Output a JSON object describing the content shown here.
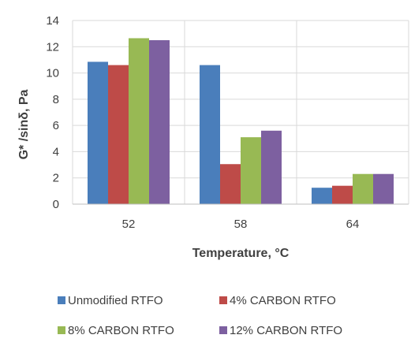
{
  "chart_data": {
    "type": "bar",
    "categories": [
      "52",
      "58",
      "64"
    ],
    "series": [
      {
        "name": "Unmodified RTFO",
        "values": [
          10.85,
          10.6,
          1.25
        ],
        "color": "#4a7ebb"
      },
      {
        "name": "4% CARBON RTFO",
        "values": [
          10.6,
          3.05,
          1.4
        ],
        "color": "#be4b48"
      },
      {
        "name": "8% CARBON RTFO",
        "values": [
          12.65,
          5.1,
          2.3
        ],
        "color": "#98b954"
      },
      {
        "name": "12% CARBON RTFO",
        "values": [
          12.5,
          5.6,
          2.3
        ],
        "color": "#7d60a0"
      }
    ],
    "xlabel": "Temperature, °C",
    "ylabel": "G* /sinδ, Pa",
    "ylim": [
      0,
      14
    ],
    "yticks": [
      "0",
      "2",
      "4",
      "6",
      "8",
      "10",
      "12",
      "14"
    ],
    "grid": true,
    "legend_position": "bottom"
  }
}
